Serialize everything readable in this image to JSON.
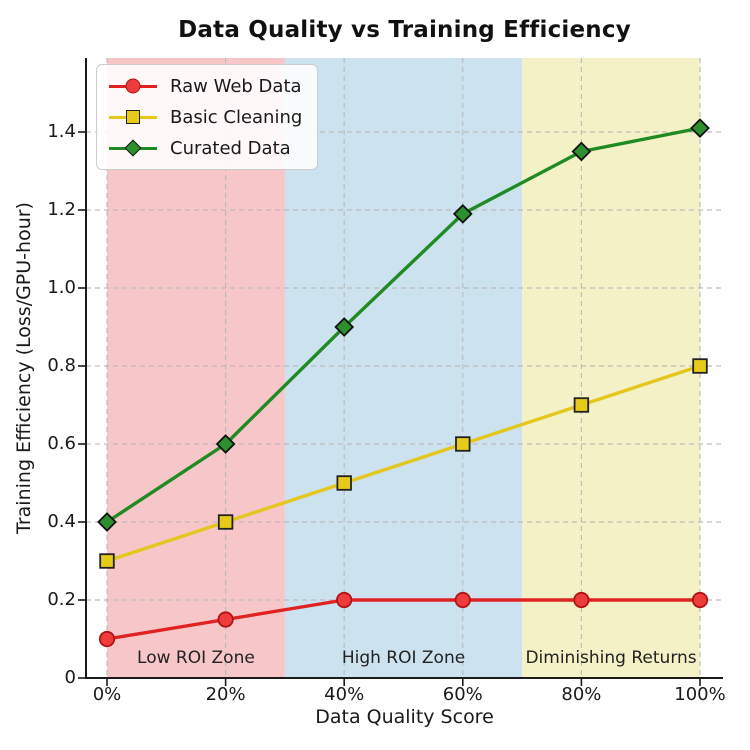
{
  "title": "Data Quality vs Training Efficiency",
  "chart_data": {
    "type": "line",
    "title": "Data Quality vs Training Efficiency",
    "xlabel": "Data Quality Score",
    "ylabel": "Training Efficiency (Loss/GPU-hour)",
    "x": [
      0,
      20,
      40,
      60,
      80,
      100
    ],
    "x_tick_labels": [
      "0%",
      "20%",
      "40%",
      "60%",
      "80%",
      "100%"
    ],
    "y_ticks": [
      0,
      0.2,
      0.4,
      0.6,
      0.8,
      1.0,
      1.2,
      1.4
    ],
    "y_tick_labels": [
      "0",
      "0.2",
      "0.4",
      "0.6",
      "0.8",
      "1.0",
      "1.2",
      "1.4"
    ],
    "xlim": [
      -3.5,
      103.9
    ],
    "ylim": [
      0,
      1.59
    ],
    "grid": true,
    "grid_style": "dashed",
    "legend_position": "upper-left",
    "series": [
      {
        "name": "Raw Web Data",
        "marker": "circle",
        "line_color": "#e02222",
        "marker_fill": "#ee3b3b",
        "marker_edge": "#b01414",
        "values": [
          0.1,
          0.15,
          0.2,
          0.2,
          0.2,
          0.2
        ]
      },
      {
        "name": "Basic Cleaning",
        "marker": "square",
        "line_color": "#e3c71d",
        "marker_fill": "#e7cb1b",
        "marker_edge": "#222222",
        "values": [
          0.3,
          0.4,
          0.5,
          0.6,
          0.7,
          0.8
        ]
      },
      {
        "name": "Curated Data",
        "marker": "diamond",
        "line_color": "#1f8b22",
        "marker_fill": "#2d8f2d",
        "marker_edge": "#111111",
        "values": [
          0.4,
          0.6,
          0.9,
          1.19,
          1.35,
          1.41
        ]
      }
    ],
    "zones": [
      {
        "label": "Low ROI Zone",
        "from": 0,
        "to": 30,
        "color": "#f7c6c9"
      },
      {
        "label": "High ROI Zone",
        "from": 30,
        "to": 70,
        "color": "#cde2ef"
      },
      {
        "label": "Diminishing Returns",
        "from": 70,
        "to": 100,
        "color": "#f5f1c6"
      }
    ],
    "style": {
      "grid_color": "#b8b8b8",
      "spine_color": "#1a1a1a",
      "background": "#ffffff"
    }
  }
}
